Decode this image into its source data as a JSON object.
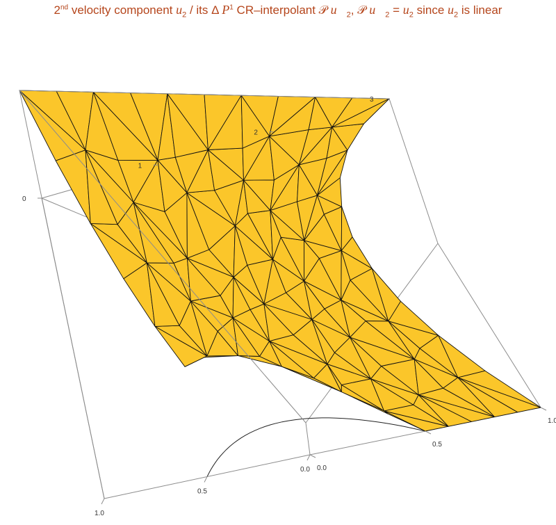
{
  "title": {
    "p1": "2",
    "sup1": "nd",
    "p2": " velocity component ",
    "u": "u",
    "two": "2",
    "p3": " / its Δ ",
    "P": "P",
    "sup2": "1",
    "p4": " CR–interpolant 𝒫 ",
    "uvec": "u⃗",
    "p5": ", 𝒫 ",
    "p6": " = ",
    "p7": " since ",
    "p8": " is linear"
  },
  "chart_data": {
    "type": "surface",
    "function": "u2(x, y) = 3·x",
    "domain": "unit square with circular hole centred at (1, 0)",
    "hole_radius": 0.5,
    "x_ticks": [
      "0.0",
      "0.5",
      "1.0"
    ],
    "y_ticks": [
      "0.0",
      "0.5",
      "1.0"
    ],
    "z_ticks": [
      "0",
      "1",
      "2",
      "3"
    ],
    "zlim": [
      0,
      3
    ],
    "surface_color": "#fbc62a",
    "mesh_color": "#111111",
    "box_color": "#8c8c8c"
  }
}
